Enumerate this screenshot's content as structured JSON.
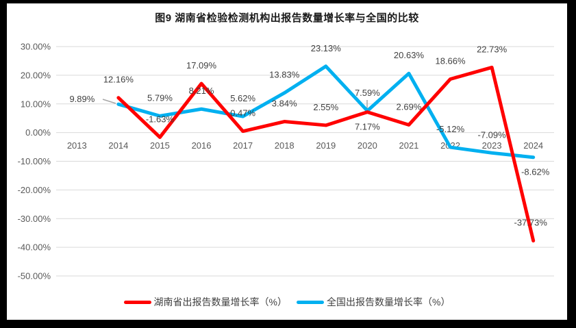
{
  "frame": {
    "border_color": "#000000",
    "background": "#ffffff"
  },
  "chart_data": {
    "type": "line",
    "title": "图9 湖南省检验检测机构出报告数量增长率与全国的比较",
    "categories": [
      "2013",
      "2014",
      "2015",
      "2016",
      "2017",
      "2018",
      "2019",
      "2020",
      "2021",
      "2022",
      "2023",
      "2024"
    ],
    "y_axis": {
      "tick_labels": [
        "30.00%",
        "20.00%",
        "10.00%",
        "0.00%",
        "-10.00%",
        "-20.00%",
        "-30.00%",
        "-40.00%",
        "-50.00%"
      ],
      "tick_values": [
        30,
        20,
        10,
        0,
        -10,
        -20,
        -30,
        -40,
        -50
      ],
      "ylim": [
        -50,
        30
      ],
      "grid": true
    },
    "series": [
      {
        "name": "湖南省出报告数量增长率（%）",
        "color": "#FF0000",
        "values": [
          null,
          12.16,
          -1.63,
          17.09,
          0.47,
          3.84,
          2.55,
          7.17,
          2.69,
          18.66,
          22.73,
          -37.73
        ],
        "data_labels": [
          "",
          "12.16%",
          "-1.63%",
          "17.09%",
          "0.47%",
          "3.84%",
          "2.55%",
          "7.17%",
          "2.69%",
          "18.66%",
          "22.73%",
          "-37.73%"
        ]
      },
      {
        "name": "全国出报告数量增长率（%）",
        "color": "#00B0F0",
        "values": [
          null,
          9.89,
          5.79,
          8.21,
          5.62,
          13.83,
          23.13,
          7.59,
          20.63,
          -5.12,
          -7.09,
          -8.62
        ],
        "data_labels": [
          "",
          "9.89%",
          "5.79%",
          "8.21%",
          "5.62%",
          "13.83%",
          "23.13%",
          "7.59%",
          "20.63%",
          "-5.12%",
          "-7.09%",
          "-8.62%"
        ]
      }
    ],
    "legend_position": "bottom",
    "colors": {
      "gridline": "#D9D9D9",
      "axis_text": "#595959",
      "label_text": "#404040",
      "leader_line": "#A6A6A6"
    }
  }
}
